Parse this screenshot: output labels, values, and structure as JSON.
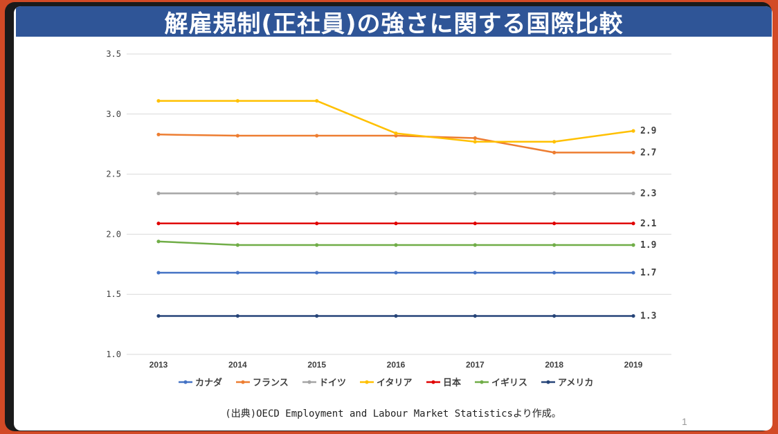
{
  "slide": {
    "title": "解雇規制(正社員)の強さに関する国際比較",
    "source": "(出典)OECD Employment and Labour Market Statisticsより作成。",
    "page_number": "1"
  },
  "chart_data": {
    "type": "line",
    "title": "",
    "xlabel": "",
    "ylabel": "",
    "categories": [
      "2013",
      "2014",
      "2015",
      "2016",
      "2017",
      "2018",
      "2019"
    ],
    "ylim": [
      1.0,
      3.5
    ],
    "yticks": [
      1.0,
      1.5,
      2.0,
      2.5,
      3.0,
      3.5
    ],
    "ytick_labels": [
      "1.0",
      "1.5",
      "2.0",
      "2.5",
      "3.0",
      "3.5"
    ],
    "grid": true,
    "legend_position": "bottom",
    "series": [
      {
        "name": "カナダ",
        "color": "#4472c4",
        "values": [
          1.68,
          1.68,
          1.68,
          1.68,
          1.68,
          1.68,
          1.68
        ],
        "end_label": "1.7"
      },
      {
        "name": "フランス",
        "color": "#ed7d31",
        "values": [
          2.83,
          2.82,
          2.82,
          2.82,
          2.8,
          2.68,
          2.68
        ],
        "end_label": "2.7"
      },
      {
        "name": "ドイツ",
        "color": "#a5a5a5",
        "values": [
          2.34,
          2.34,
          2.34,
          2.34,
          2.34,
          2.34,
          2.34
        ],
        "end_label": "2.3"
      },
      {
        "name": "イタリア",
        "color": "#ffc000",
        "values": [
          3.11,
          3.11,
          3.11,
          2.84,
          2.77,
          2.77,
          2.86
        ],
        "end_label": "2.9"
      },
      {
        "name": "日本",
        "color": "#e00000",
        "values": [
          2.09,
          2.09,
          2.09,
          2.09,
          2.09,
          2.09,
          2.09
        ],
        "end_label": "2.1"
      },
      {
        "name": "イギリス",
        "color": "#70ad47",
        "values": [
          1.94,
          1.91,
          1.91,
          1.91,
          1.91,
          1.91,
          1.91
        ],
        "end_label": "1.9"
      },
      {
        "name": "アメリカ",
        "color": "#264478",
        "values": [
          1.32,
          1.32,
          1.32,
          1.32,
          1.32,
          1.32,
          1.32
        ],
        "end_label": "1.3"
      }
    ]
  }
}
